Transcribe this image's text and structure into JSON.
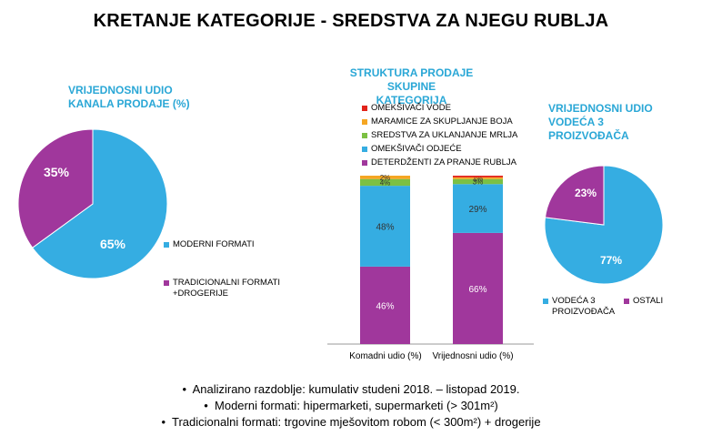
{
  "title": "KRETANJE KATEGORIJE - SREDSTVA ZA NJEGU RUBLJA",
  "colors": {
    "blue": "#35ade2",
    "purple": "#a0379c",
    "green": "#7cc043",
    "orange": "#f5a623",
    "red": "#e2231a",
    "accent": "#2aa7d6"
  },
  "left_section": {
    "title_line1": "VRIJEDNOSNI UDIO",
    "title_line2": "KANALA PRODAJE (%)",
    "legend": [
      "MODERNI FORMATI",
      "TRADICIONALNI FORMATI",
      "+DROGERIJE"
    ]
  },
  "middle_section": {
    "title_line1": "STRUKTURA PRODAJE SKUPINE",
    "title_line2": "KATEGORIJA",
    "legend": [
      "OMEKŠIVAČI VODE",
      "MARAMICE ZA SKUPLJANJE BOJA",
      "SREDSTVA ZA UKLANJANJE MRLJA",
      "OMEKŠIVAČI ODJEĆE",
      "DETERDŽENTI ZA PRANJE RUBLJA"
    ]
  },
  "right_section": {
    "title_line1": "VRIJEDNOSNI UDIO",
    "title_line2": "VODEĆA 3",
    "title_line3": "PROIZVOĐAČA",
    "legend_a_line1": "VODEĆA 3",
    "legend_a_line2": "PROIZVOĐAČA",
    "legend_b": "OSTALI"
  },
  "footnotes": [
    "Analizirano razdoblje: kumulativ studeni 2018. – listopad 2019.",
    "Moderni formati: hipermarketi, supermarketi (> 301m²)",
    "Tradicionalni formati: trgovine mješovitom robom (< 300m²) + drogerije"
  ],
  "chart_data": [
    {
      "type": "pie",
      "title": "VRIJEDNOSNI UDIO KANALA PRODAJE (%)",
      "labels": [
        "MODERNI FORMATI",
        "TRADICIONALNI FORMATI +DROGERIJE"
      ],
      "values": [
        65,
        35
      ],
      "value_labels": [
        "65%",
        "35%"
      ],
      "colors": [
        "#35ade2",
        "#a0379c"
      ],
      "legend": "right"
    },
    {
      "type": "bar",
      "stacked": true,
      "title": "STRUKTURA PRODAJE SKUPINE KATEGORIJA",
      "categories": [
        "Komadni udio (%)",
        "Vrijednosni udio (%)"
      ],
      "series": [
        {
          "name": "DETERDŽENTI ZA PRANJE RUBLJA",
          "values": [
            46,
            66
          ],
          "labels": [
            "46%",
            "66%"
          ],
          "color": "#a0379c"
        },
        {
          "name": "OMEKŠIVAČI ODJEĆE",
          "values": [
            48,
            29
          ],
          "labels": [
            "48%",
            "29%"
          ],
          "color": "#35ade2"
        },
        {
          "name": "SREDSTVA ZA UKLANJANJE MRLJA",
          "values": [
            4,
            3
          ],
          "labels": [
            "4%",
            "3%"
          ],
          "color": "#7cc043"
        },
        {
          "name": "MARAMICE ZA SKUPLJANJE BOJA",
          "values": [
            2,
            1
          ],
          "labels": [
            "2%",
            "1%"
          ],
          "color": "#f5a623"
        },
        {
          "name": "OMEKŠIVAČI VODE",
          "values": [
            0,
            1
          ],
          "labels": [
            "",
            ""
          ],
          "color": "#e2231a"
        }
      ],
      "ylim": [
        0,
        100
      ],
      "legend": "top"
    },
    {
      "type": "pie",
      "title": "VRIJEDNOSNI UDIO VODEĆA 3 PROIZVOĐAČA",
      "labels": [
        "VODEĆA 3 PROIZVOĐAČA",
        "OSTALI"
      ],
      "values": [
        77,
        23
      ],
      "value_labels": [
        "77%",
        "23%"
      ],
      "colors": [
        "#35ade2",
        "#a0379c"
      ],
      "legend": "bottom"
    }
  ]
}
